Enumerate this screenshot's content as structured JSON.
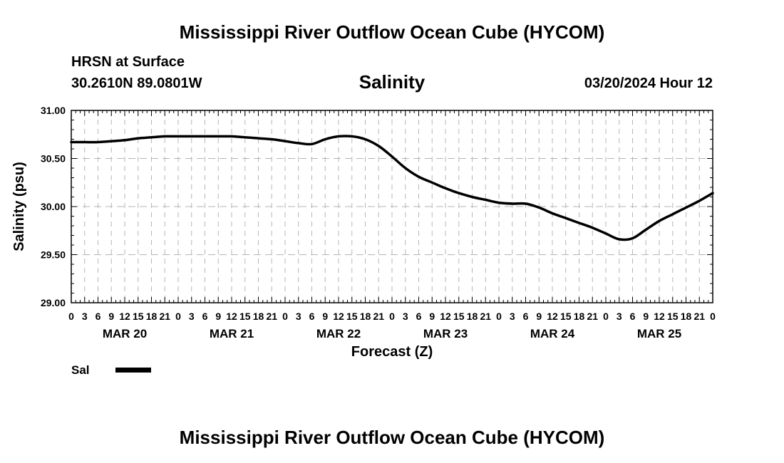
{
  "header": {
    "title": "Mississippi River Outflow Ocean Cube (HYCOM)",
    "station": "HRSN at Surface",
    "coords": "30.2610N  89.0801W",
    "variable_title": "Salinity",
    "run_date": "03/20/2024 Hour 12"
  },
  "legend": {
    "label": "Sal"
  },
  "footer": {
    "title": "Mississippi River Outflow Ocean Cube (HYCOM)"
  },
  "chart_data": {
    "type": "line",
    "title": "Salinity",
    "xlabel": "Forecast (Z)",
    "ylabel": "Salinity (psu)",
    "ylim": [
      29.0,
      31.0
    ],
    "yticks": [
      "29.00",
      "29.50",
      "30.00",
      "30.50",
      "31.00"
    ],
    "xlim_hours": [
      0,
      144
    ],
    "x_hour_labels": [
      "0",
      "3",
      "6",
      "9",
      "12",
      "15",
      "18",
      "21",
      "0",
      "3",
      "6",
      "9",
      "12",
      "15",
      "18",
      "21",
      "0",
      "3",
      "6",
      "9",
      "12",
      "15",
      "18",
      "21",
      "0",
      "3",
      "6",
      "9",
      "12",
      "15",
      "18",
      "21",
      "0",
      "3",
      "6",
      "9",
      "12",
      "15",
      "18",
      "21",
      "0",
      "3",
      "6",
      "9",
      "12",
      "15",
      "18",
      "21",
      "0"
    ],
    "date_labels": [
      {
        "label": "MAR 20",
        "hour": 12
      },
      {
        "label": "MAR 21",
        "hour": 36
      },
      {
        "label": "MAR 22",
        "hour": 60
      },
      {
        "label": "MAR 23",
        "hour": 84
      },
      {
        "label": "MAR 24",
        "hour": 108
      },
      {
        "label": "MAR 25",
        "hour": 132
      }
    ],
    "grid": true,
    "series": [
      {
        "name": "Sal",
        "x": [
          0,
          3,
          6,
          9,
          12,
          15,
          18,
          21,
          24,
          27,
          30,
          33,
          36,
          39,
          42,
          45,
          48,
          51,
          54,
          57,
          60,
          63,
          66,
          69,
          72,
          75,
          78,
          81,
          84,
          87,
          90,
          93,
          96,
          99,
          102,
          105,
          108,
          111,
          114,
          117,
          120,
          123,
          126,
          129,
          132,
          135,
          138,
          141,
          144
        ],
        "values": [
          30.67,
          30.67,
          30.67,
          30.68,
          30.69,
          30.71,
          30.72,
          30.73,
          30.73,
          30.73,
          30.73,
          30.73,
          30.73,
          30.72,
          30.71,
          30.7,
          30.68,
          30.66,
          30.65,
          30.7,
          30.73,
          30.73,
          30.7,
          30.63,
          30.52,
          30.4,
          30.31,
          30.25,
          30.19,
          30.14,
          30.1,
          30.07,
          30.04,
          30.03,
          30.03,
          29.99,
          29.93,
          29.88,
          29.83,
          29.78,
          29.72,
          29.66,
          29.67,
          29.76,
          29.85,
          29.92,
          29.99,
          30.06,
          30.14
        ]
      }
    ]
  }
}
